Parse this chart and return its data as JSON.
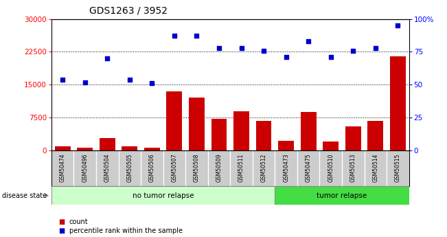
{
  "title": "GDS1263 / 3952",
  "samples": [
    "GSM50474",
    "GSM50496",
    "GSM50504",
    "GSM50505",
    "GSM50506",
    "GSM50507",
    "GSM50508",
    "GSM50509",
    "GSM50511",
    "GSM50512",
    "GSM50473",
    "GSM50475",
    "GSM50510",
    "GSM50513",
    "GSM50514",
    "GSM50515"
  ],
  "counts": [
    900,
    600,
    2800,
    900,
    700,
    13500,
    12000,
    7200,
    9000,
    6800,
    2200,
    8800,
    2000,
    5500,
    6800,
    21500
  ],
  "percentiles": [
    54,
    52,
    70,
    54,
    51,
    87,
    87,
    78,
    78,
    76,
    71,
    83,
    71,
    76,
    78,
    95
  ],
  "no_tumor_count": 10,
  "tumor_count": 6,
  "bar_color": "#cc0000",
  "dot_color": "#0000cc",
  "no_tumor_color_light": "#ccffcc",
  "tumor_color": "#44dd44",
  "bg_color": "#cccccc",
  "left_ylim": [
    0,
    30000
  ],
  "right_ylim": [
    0,
    100
  ],
  "left_yticks": [
    0,
    7500,
    15000,
    22500,
    30000
  ],
  "right_yticks": [
    0,
    25,
    50,
    75,
    100
  ],
  "right_yticklabels": [
    "0",
    "25",
    "50",
    "75",
    "100%"
  ]
}
